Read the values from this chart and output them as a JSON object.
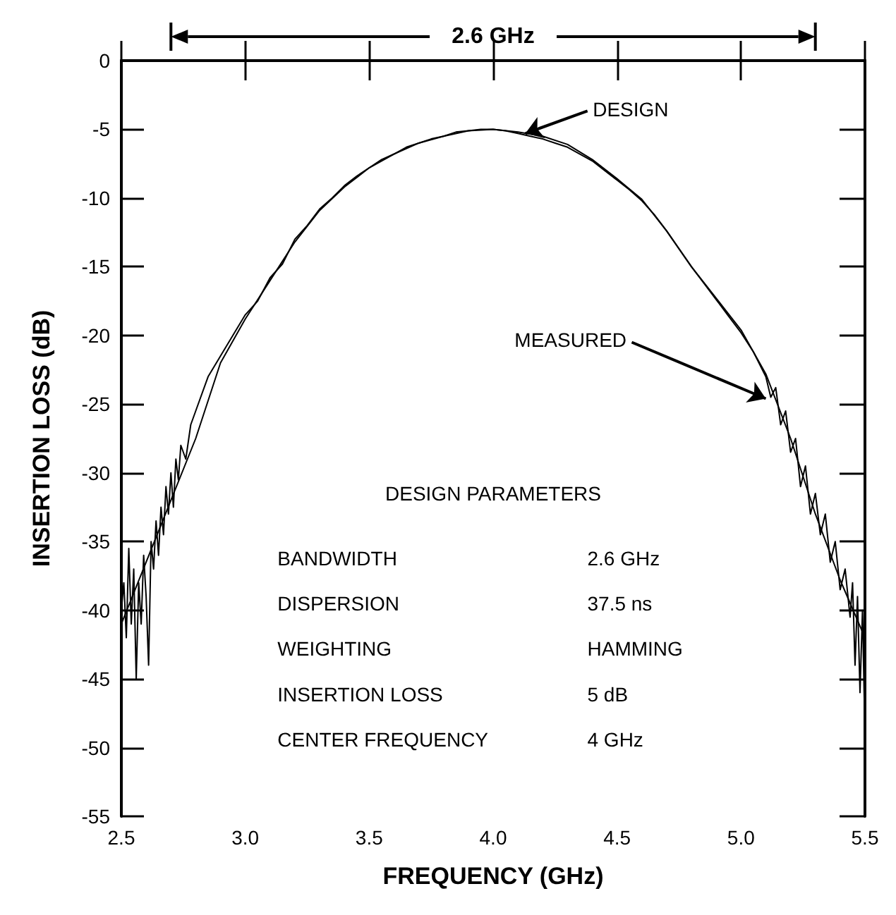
{
  "chart_data": {
    "type": "line",
    "xlabel": "FREQUENCY (GHz)",
    "ylabel": "INSERTION LOSS (dB)",
    "xlim": [
      2.5,
      5.5
    ],
    "ylim": [
      -55,
      0
    ],
    "xticks": [
      2.5,
      {
        "value": 3,
        "label": "3.0"
      },
      3.5,
      {
        "value": 4,
        "label": "4.0"
      },
      4.5,
      {
        "value": 5,
        "label": "5.0"
      },
      5.5
    ],
    "yticks": [
      0,
      -5,
      -10,
      -15,
      -20,
      -25,
      -30,
      -35,
      -40,
      -45,
      -50,
      -55
    ],
    "grid": false,
    "marker": "none",
    "line_style": "solid",
    "series": [
      {
        "color": "#000000",
        "x": [
          2.5,
          2.6,
          2.7,
          2.8,
          2.9,
          3.0,
          3.1,
          3.2,
          3.3,
          3.4,
          3.5,
          3.6,
          3.7,
          3.8,
          3.9,
          4.0,
          4.1,
          4.2,
          4.3,
          4.4,
          4.5,
          4.6,
          4.7,
          4.8,
          4.9,
          5.0,
          5.1,
          5.2,
          5.3,
          5.4,
          5.5
        ],
        "values": [
          -41,
          -36.5,
          -32,
          -27.5,
          -22,
          -18.8,
          -16,
          -13.2,
          -10.9,
          -9.2,
          -7.8,
          -6.8,
          -6.0,
          -5.5,
          -5.1,
          -5.0,
          -5.2,
          -5.5,
          -6.1,
          -7.2,
          -8.6,
          -10.1,
          -12.4,
          -15.0,
          -17.3,
          -19.6,
          -22.8,
          -27.5,
          -33,
          -37.8,
          -42
        ]
      },
      {
        "color": "#000000",
        "x": [
          2.5,
          2.51,
          2.52,
          2.53,
          2.54,
          2.55,
          2.56,
          2.57,
          2.58,
          2.59,
          2.6,
          2.61,
          2.62,
          2.63,
          2.64,
          2.65,
          2.66,
          2.67,
          2.68,
          2.69,
          2.7,
          2.71,
          2.72,
          2.73,
          2.74,
          2.76,
          2.78,
          2.8,
          2.85,
          2.9,
          2.95,
          3.0,
          3.05,
          3.1,
          3.15,
          3.2,
          3.25,
          3.3,
          3.35,
          3.4,
          3.45,
          3.5,
          3.55,
          3.6,
          3.65,
          3.7,
          3.75,
          3.8,
          3.85,
          3.9,
          3.95,
          4.0,
          4.05,
          4.1,
          4.15,
          4.2,
          4.25,
          4.3,
          4.35,
          4.4,
          4.45,
          4.5,
          4.55,
          4.6,
          4.65,
          4.7,
          4.75,
          4.8,
          4.85,
          4.9,
          4.95,
          5.0,
          5.05,
          5.1,
          5.12,
          5.14,
          5.16,
          5.18,
          5.2,
          5.22,
          5.24,
          5.26,
          5.28,
          5.3,
          5.32,
          5.34,
          5.36,
          5.38,
          5.4,
          5.42,
          5.44,
          5.45,
          5.46,
          5.47,
          5.48,
          5.49,
          5.5
        ],
        "values": [
          -40,
          -38,
          -42,
          -35.5,
          -41,
          -37,
          -45,
          -38,
          -41,
          -36,
          -39,
          -44,
          -35,
          -37,
          -33.5,
          -36,
          -32.5,
          -34.5,
          -31,
          -33,
          -30,
          -32.5,
          -29,
          -30.5,
          -28,
          -29,
          -26.5,
          -25.5,
          -23,
          -21.5,
          -20,
          -18.5,
          -17.5,
          -15.8,
          -14.8,
          -13,
          -12,
          -10.8,
          -10,
          -9.1,
          -8.4,
          -7.8,
          -7.2,
          -6.8,
          -6.3,
          -6.0,
          -5.7,
          -5.5,
          -5.2,
          -5.1,
          -5.0,
          -5.0,
          -5.1,
          -5.3,
          -5.5,
          -5.7,
          -6.0,
          -6.3,
          -6.8,
          -7.3,
          -8.0,
          -8.7,
          -9.4,
          -10.2,
          -11.2,
          -12.4,
          -13.7,
          -15.0,
          -16.2,
          -17.4,
          -18.6,
          -19.8,
          -21.2,
          -23.0,
          -24.5,
          -23.8,
          -26.5,
          -25.5,
          -28.5,
          -27.5,
          -31,
          -29.5,
          -33,
          -31.5,
          -34.5,
          -33,
          -36.5,
          -35,
          -38.5,
          -37,
          -40.5,
          -38,
          -44,
          -39,
          -46,
          -40,
          -49
        ]
      }
    ],
    "annotations": [
      {
        "text": "DESIGN",
        "x": 4.13,
        "y": -5.3
      },
      {
        "text": "MEASURED",
        "x": 5.1,
        "y": -24.6
      },
      "2.6 GHz",
      "DESIGN PARAMETERS",
      "BANDWIDTH",
      "2.6 GHz",
      "DISPERSION",
      "37.5 ns",
      "WEIGHTING",
      "HAMMING",
      "INSERTION LOSS",
      "5 dB",
      "CENTER FREQUENCY",
      "4 GHz"
    ]
  }
}
